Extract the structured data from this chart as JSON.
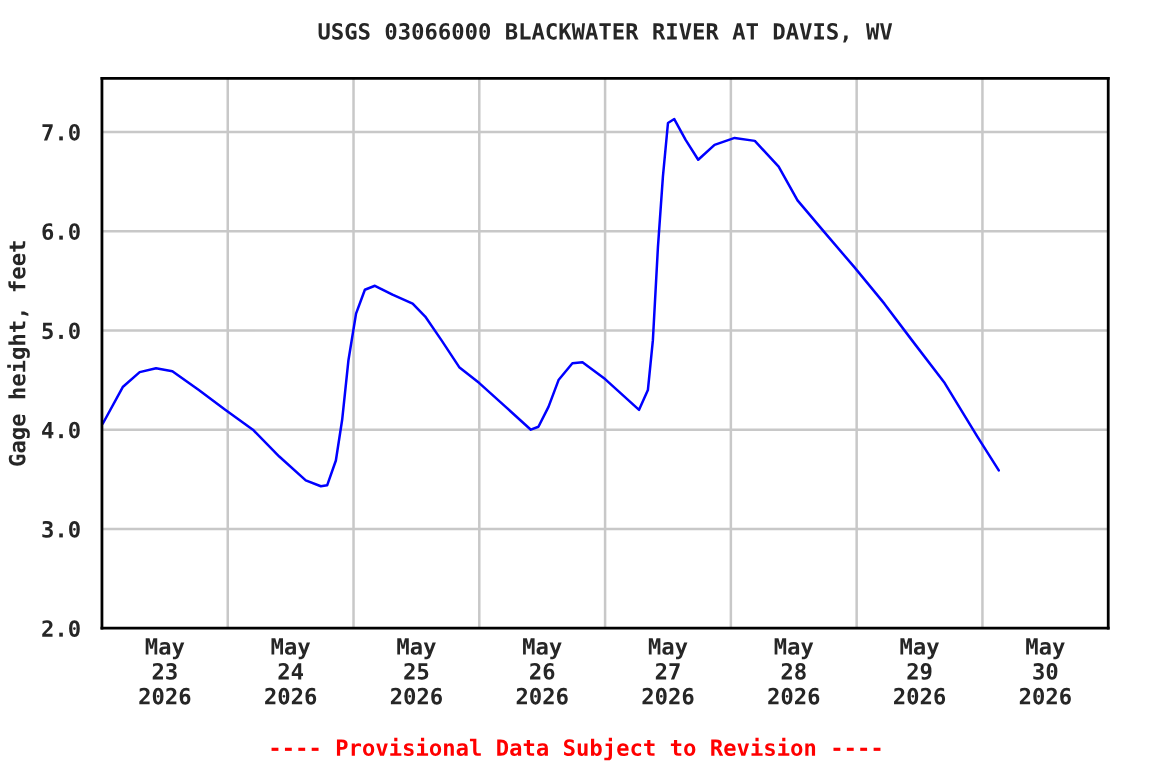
{
  "chart_data": {
    "type": "line",
    "title": "USGS 03066000 BLACKWATER RIVER AT DAVIS, WV",
    "ylabel": "Gage height, feet",
    "annotations": [
      "---- Provisional Data Subject to Revision ----"
    ],
    "x": [
      "2026-05-23T00:09",
      "2026-05-23T03:58",
      "2026-05-23T07:12",
      "2026-05-23T10:19",
      "2026-05-23T13:26",
      "2026-05-23T18:29",
      "2026-05-23T23:31",
      "2026-05-24T04:48",
      "2026-05-24T09:50",
      "2026-05-24T14:53",
      "2026-05-24T17:46",
      "2026-05-24T18:58",
      "2026-05-24T20:38",
      "2026-05-24T21:50",
      "2026-05-24T23:02",
      "2026-05-25T00:29",
      "2026-05-25T02:10",
      "2026-05-25T04:05",
      "2026-05-25T07:26",
      "2026-05-25T11:17",
      "2026-05-25T13:41",
      "2026-05-25T16:48",
      "2026-05-25T20:10",
      "2026-05-26T00:00",
      "2026-05-26T05:02",
      "2026-05-26T09:50",
      "2026-05-26T11:17",
      "2026-05-26T13:12",
      "2026-05-26T15:07",
      "2026-05-26T17:46",
      "2026-05-26T19:41",
      "2026-05-27T00:00",
      "2026-05-27T06:29",
      "2026-05-27T08:10",
      "2026-05-27T09:07",
      "2026-05-27T10:05",
      "2026-05-27T11:02",
      "2026-05-27T12:00",
      "2026-05-27T13:12",
      "2026-05-27T15:22",
      "2026-05-27T17:46",
      "2026-05-27T20:53",
      "2026-05-28T00:43",
      "2026-05-28T04:34",
      "2026-05-28T09:07",
      "2026-05-28T12:43",
      "2026-05-28T18:00",
      "2026-05-28T23:31",
      "2026-05-29T05:17",
      "2026-05-29T10:34",
      "2026-05-29T16:48",
      "2026-05-29T23:02",
      "2026-05-30T03:07"
    ],
    "series": [
      {
        "color": "#0000ff",
        "values": [
          4.06,
          4.43,
          4.58,
          4.62,
          4.59,
          4.4,
          4.2,
          4.0,
          3.73,
          3.49,
          3.43,
          3.44,
          3.69,
          4.1,
          4.7,
          5.17,
          5.41,
          5.45,
          5.36,
          5.27,
          5.14,
          4.9,
          4.63,
          4.47,
          4.23,
          4.0,
          4.03,
          4.23,
          4.5,
          4.67,
          4.68,
          4.51,
          4.2,
          4.4,
          4.9,
          5.84,
          6.55,
          7.09,
          7.13,
          6.92,
          6.72,
          6.87,
          6.94,
          6.91,
          6.65,
          6.31,
          5.98,
          5.64,
          5.27,
          4.9,
          4.47,
          3.93,
          3.59
        ]
      }
    ],
    "xlim": [
      "2026-05-23T00:00",
      "2026-05-31T00:00"
    ],
    "xticks": [
      {
        "value": "2026-05-23T12:00",
        "label": "May\n23\n2026"
      },
      {
        "value": "2026-05-24T00:00",
        "label": null
      },
      {
        "value": "2026-05-24T12:00",
        "label": "May\n24\n2026"
      },
      {
        "value": "2026-05-25T00:00",
        "label": null
      },
      {
        "value": "2026-05-25T12:00",
        "label": "May\n25\n2026"
      },
      {
        "value": "2026-05-26T00:00",
        "label": null
      },
      {
        "value": "2026-05-26T12:00",
        "label": "May\n26\n2026"
      },
      {
        "value": "2026-05-27T00:00",
        "label": null
      },
      {
        "value": "2026-05-27T12:00",
        "label": "May\n27\n2026"
      },
      {
        "value": "2026-05-28T00:00",
        "label": null
      },
      {
        "value": "2026-05-28T12:00",
        "label": "May\n28\n2026"
      },
      {
        "value": "2026-05-29T00:00",
        "label": null
      },
      {
        "value": "2026-05-29T12:00",
        "label": "May\n29\n2026"
      },
      {
        "value": "2026-05-30T00:00",
        "label": null
      },
      {
        "value": "2026-05-30T12:00",
        "label": "May\n30\n2026"
      }
    ],
    "ylim": [
      2.0,
      7.54
    ],
    "yticks": [
      {
        "value": 2.0,
        "label": "2.0"
      },
      {
        "value": 3.0,
        "label": "3.0"
      },
      {
        "value": 4.0,
        "label": "4.0"
      },
      {
        "value": 5.0,
        "label": "5.0"
      },
      {
        "value": 6.0,
        "label": "6.0"
      },
      {
        "value": 7.0,
        "label": "7.0"
      }
    ],
    "grid": true,
    "line_style": "solid",
    "marker": "none"
  }
}
